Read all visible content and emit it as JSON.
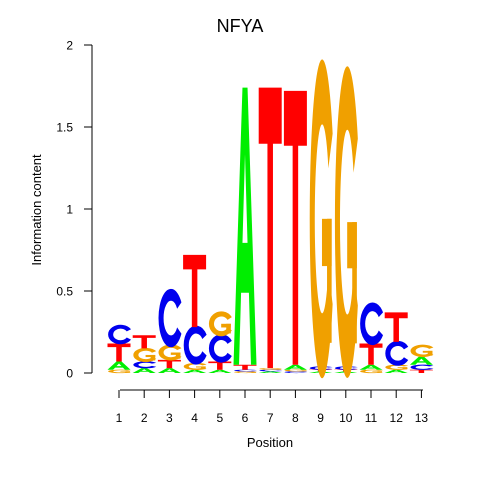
{
  "chart_data": {
    "type": "sequence-logo",
    "title": "NFYA",
    "xlabel": "Position",
    "ylabel": "Information content",
    "ylim": [
      0,
      2
    ],
    "yticks": [
      "0",
      "0.5",
      "1",
      "1.5",
      "2"
    ],
    "positions": [
      "1",
      "2",
      "3",
      "4",
      "5",
      "6",
      "7",
      "8",
      "9",
      "10",
      "11",
      "12",
      "13"
    ],
    "colors": {
      "A": "#00ee00",
      "C": "#0000ee",
      "G": "#f0a000",
      "T": "#ff0000"
    },
    "columns": [
      {
        "position": "1",
        "letters": [
          {
            "base": "G",
            "height": 0.02
          },
          {
            "base": "A",
            "height": 0.05
          },
          {
            "base": "T",
            "height": 0.11
          },
          {
            "base": "C",
            "height": 0.11
          }
        ]
      },
      {
        "position": "2",
        "letters": [
          {
            "base": "A",
            "height": 0.03
          },
          {
            "base": "C",
            "height": 0.04
          },
          {
            "base": "G",
            "height": 0.08
          },
          {
            "base": "T",
            "height": 0.08
          }
        ]
      },
      {
        "position": "3",
        "letters": [
          {
            "base": "A",
            "height": 0.03
          },
          {
            "base": "T",
            "height": 0.05
          },
          {
            "base": "G",
            "height": 0.09
          },
          {
            "base": "C",
            "height": 0.33
          }
        ]
      },
      {
        "position": "4",
        "letters": [
          {
            "base": "A",
            "height": 0.02
          },
          {
            "base": "G",
            "height": 0.04
          },
          {
            "base": "C",
            "height": 0.22
          },
          {
            "base": "T",
            "height": 0.44
          }
        ]
      },
      {
        "position": "5",
        "letters": [
          {
            "base": "A",
            "height": 0.02
          },
          {
            "base": "T",
            "height": 0.05
          },
          {
            "base": "C",
            "height": 0.16
          },
          {
            "base": "G",
            "height": 0.14
          }
        ]
      },
      {
        "position": "6",
        "letters": [
          {
            "base": "G",
            "height": 0.01
          },
          {
            "base": "C",
            "height": 0.01
          },
          {
            "base": "T",
            "height": 0.03
          },
          {
            "base": "A",
            "height": 1.69
          }
        ]
      },
      {
        "position": "7",
        "letters": [
          {
            "base": "A",
            "height": 0.01
          },
          {
            "base": "C",
            "height": 0.01
          },
          {
            "base": "G",
            "height": 0.01
          },
          {
            "base": "T",
            "height": 1.71
          }
        ]
      },
      {
        "position": "8",
        "letters": [
          {
            "base": "C",
            "height": 0.01
          },
          {
            "base": "G",
            "height": 0.01
          },
          {
            "base": "A",
            "height": 0.03
          },
          {
            "base": "T",
            "height": 1.67
          }
        ]
      },
      {
        "position": "9",
        "letters": [
          {
            "base": "A",
            "height": 0.01
          },
          {
            "base": "T",
            "height": 0.01
          },
          {
            "base": "C",
            "height": 0.02
          },
          {
            "base": "G",
            "height": 1.8
          }
        ]
      },
      {
        "position": "10",
        "letters": [
          {
            "base": "A",
            "height": 0.01
          },
          {
            "base": "T",
            "height": 0.01
          },
          {
            "base": "C",
            "height": 0.02
          },
          {
            "base": "G",
            "height": 1.76
          }
        ]
      },
      {
        "position": "11",
        "letters": [
          {
            "base": "G",
            "height": 0.02
          },
          {
            "base": "A",
            "height": 0.03
          },
          {
            "base": "T",
            "height": 0.13
          },
          {
            "base": "C",
            "height": 0.24
          }
        ]
      },
      {
        "position": "12",
        "letters": [
          {
            "base": "A",
            "height": 0.02
          },
          {
            "base": "G",
            "height": 0.03
          },
          {
            "base": "C",
            "height": 0.14
          },
          {
            "base": "T",
            "height": 0.18
          }
        ]
      },
      {
        "position": "13",
        "letters": [
          {
            "base": "T",
            "height": 0.02
          },
          {
            "base": "C",
            "height": 0.03
          },
          {
            "base": "A",
            "height": 0.05
          },
          {
            "base": "G",
            "height": 0.07
          }
        ]
      }
    ]
  }
}
